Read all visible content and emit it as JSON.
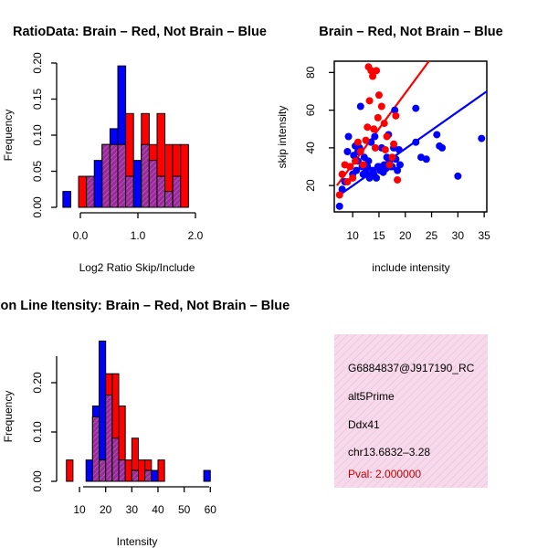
{
  "colors": {
    "brain": "#ff0000",
    "not_brain": "#0000ff",
    "overlap": "#9b2a9b",
    "overlap_hatch": "#c06ac0",
    "pval": "#c00000",
    "info_bg": "#f6d9ea"
  },
  "chart_data": [
    {
      "id": "ratio",
      "type": "bar",
      "title": "RatioData: Brain – Red, Not Brain – Blue",
      "xlabel": "Log2 Ratio Skip/Include",
      "ylabel": "Frequency",
      "xlim": [
        -0.35,
        2.6
      ],
      "ylim": [
        0,
        0.2
      ],
      "xticks": [
        0.0,
        1.0,
        2.0
      ],
      "xtick_labels": [
        "0.0",
        "1.0",
        "2.0"
      ],
      "yticks": [
        0,
        0.05,
        0.1,
        0.15,
        0.2
      ],
      "ytick_labels": [
        "0.00",
        "0.05",
        "0.10",
        "0.15",
        "0.20"
      ],
      "bin_start": -0.3,
      "bin_width": 0.15,
      "series": [
        {
          "name": "Not Brain",
          "color": "blue",
          "values": [
            0.022,
            0,
            0,
            0.043,
            0.065,
            0.087,
            0.109,
            0.196,
            0.043,
            0.065,
            0.087,
            0.065,
            0.043,
            0.022,
            0.043,
            0
          ]
        },
        {
          "name": "Brain",
          "color": "red",
          "values": [
            0,
            0,
            0.043,
            0.043,
            0,
            0.087,
            0.087,
            0.087,
            0.13,
            0,
            0.13,
            0.087,
            0.13,
            0.087,
            0.087,
            0.087
          ]
        }
      ]
    },
    {
      "id": "scatter",
      "type": "scatter",
      "title": "Brain – Red, Not Brain – Blue",
      "xlabel": "include intensity",
      "ylabel": "skip intensity",
      "xlim": [
        6.5,
        35.5
      ],
      "ylim": [
        6,
        86
      ],
      "xticks": [
        10,
        15,
        20,
        25,
        30,
        35
      ],
      "yticks": [
        20,
        40,
        60,
        80
      ],
      "series": [
        {
          "name": "Not Brain",
          "color": "blue",
          "points": [
            [
              7.5,
              9
            ],
            [
              8,
              18
            ],
            [
              8.5,
              22
            ],
            [
              9,
              38
            ],
            [
              9.2,
              46
            ],
            [
              9.5,
              30
            ],
            [
              10,
              26
            ],
            [
              10.2,
              36
            ],
            [
              10.5,
              41
            ],
            [
              10.7,
              28
            ],
            [
              11,
              33
            ],
            [
              11,
              38
            ],
            [
              11.3,
              40
            ],
            [
              11.5,
              62
            ],
            [
              11.8,
              30
            ],
            [
              12,
              26
            ],
            [
              12.2,
              35
            ],
            [
              12.5,
              27
            ],
            [
              12.8,
              30
            ],
            [
              13,
              33
            ],
            [
              13.2,
              24
            ],
            [
              13.5,
              43
            ],
            [
              13.8,
              28
            ],
            [
              14,
              26
            ],
            [
              14.2,
              46
            ],
            [
              14.5,
              24
            ],
            [
              14.8,
              30
            ],
            [
              15,
              30
            ],
            [
              15.2,
              28
            ],
            [
              15.5,
              40
            ],
            [
              15.8,
              27
            ],
            [
              16,
              31
            ],
            [
              16.3,
              29
            ],
            [
              16.5,
              35
            ],
            [
              16.8,
              47
            ],
            [
              17,
              32
            ],
            [
              17.2,
              30
            ],
            [
              17.5,
              30
            ],
            [
              17.8,
              40
            ],
            [
              18,
              60
            ],
            [
              18.2,
              34
            ],
            [
              18.5,
              28
            ],
            [
              18.8,
              39
            ],
            [
              19,
              31
            ],
            [
              22,
              43
            ],
            [
              22,
              61
            ],
            [
              23,
              35
            ],
            [
              24,
              34
            ],
            [
              26,
              47
            ],
            [
              26.5,
              41
            ],
            [
              27,
              40
            ],
            [
              30,
              25
            ],
            [
              34.5,
              45
            ]
          ]
        },
        {
          "name": "Brain",
          "color": "red",
          "points": [
            [
              7.5,
              15
            ],
            [
              8,
              26
            ],
            [
              8.5,
              31
            ],
            [
              9,
              22
            ],
            [
              9.5,
              30
            ],
            [
              10,
              24
            ],
            [
              10.5,
              33
            ],
            [
              11,
              43
            ],
            [
              11.5,
              38
            ],
            [
              12,
              31
            ],
            [
              12.5,
              44
            ],
            [
              12.8,
              51
            ],
            [
              13,
              83
            ],
            [
              13.2,
              65
            ],
            [
              13.5,
              81
            ],
            [
              13.8,
              78
            ],
            [
              14,
              50
            ],
            [
              14.3,
              40
            ],
            [
              14.5,
              81
            ],
            [
              14.8,
              56
            ],
            [
              15,
              68
            ],
            [
              15.5,
              62
            ],
            [
              16,
              53
            ],
            [
              16.2,
              39
            ],
            [
              16.5,
              46
            ],
            [
              17,
              31
            ],
            [
              17.5,
              35
            ],
            [
              17.8,
              42
            ],
            [
              18.2,
              57
            ],
            [
              18.5,
              23
            ]
          ]
        }
      ],
      "fit_lines": [
        {
          "name": "Not Brain",
          "color": "blue",
          "x": [
            7,
            35.5
          ],
          "y": [
            14,
            70
          ]
        },
        {
          "name": "Brain",
          "color": "red",
          "x": [
            7,
            24.5
          ],
          "y": [
            20,
            86
          ]
        }
      ]
    },
    {
      "id": "intensity",
      "type": "bar",
      "title": "Exon Line Itensity: Brain – Red, Not Brain – Blue",
      "xlabel": "Intensity",
      "ylabel": "Frequency",
      "xlim": [
        3,
        62
      ],
      "ylim": [
        0,
        0.28
      ],
      "xticks": [
        10,
        20,
        30,
        40,
        50,
        60
      ],
      "yticks": [
        0,
        0.1,
        0.2
      ],
      "ytick_labels": [
        "0.00",
        "0.10",
        "0.20"
      ],
      "bin_start": 5,
      "bin_width": 2.5,
      "series": [
        {
          "name": "Not Brain",
          "color": "blue",
          "values": [
            0,
            0,
            0,
            0.043,
            0.152,
            0.283,
            0.174,
            0.087,
            0.043,
            0,
            0.022,
            0,
            0.022,
            0.022,
            0,
            0,
            0,
            0,
            0,
            0,
            0,
            0.022
          ]
        },
        {
          "name": "Brain",
          "color": "red",
          "values": [
            0.043,
            0,
            0,
            0,
            0.13,
            0.043,
            0.217,
            0.217,
            0.152,
            0.043,
            0.087,
            0.043,
            0.043,
            0,
            0.043,
            0,
            0,
            0,
            0,
            0,
            0,
            0
          ]
        }
      ]
    }
  ],
  "info_panel": {
    "id": "G6884837@J917190_RC",
    "event_type": "alt5Prime",
    "gene": "Ddx41",
    "location": "chr13.6832–3.28",
    "pval": "Pval: 2.000000"
  }
}
